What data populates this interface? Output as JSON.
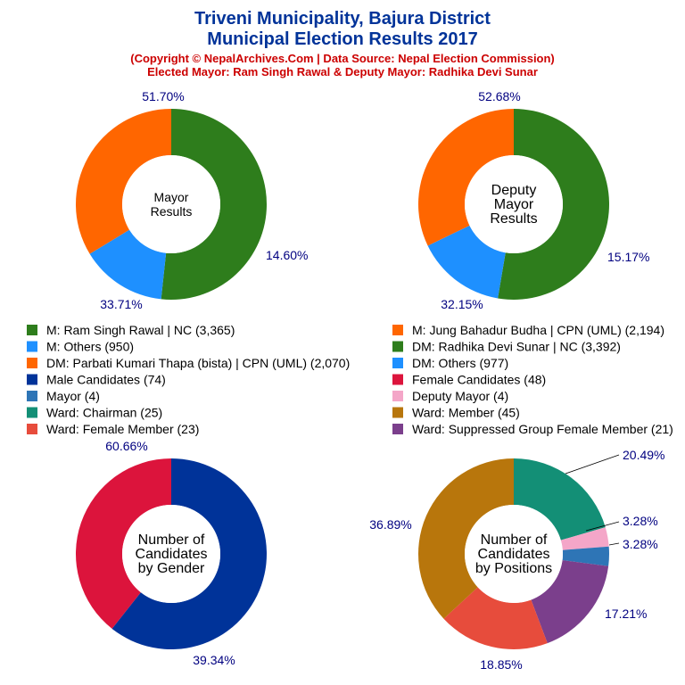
{
  "header": {
    "title1": "Triveni Municipality, Bajura District",
    "title2": "Municipal Election Results 2017",
    "subtitle1": "(Copyright © NepalArchives.Com | Data Source: Nepal Election Commission)",
    "subtitle2": "Elected Mayor: Ram Singh Rawal & Deputy Mayor: Radhika Devi Sunar"
  },
  "chart_data": [
    {
      "type": "pie",
      "center_label": [
        "Mayor",
        "Results"
      ],
      "series": [
        {
          "name": "M: Ram Singh Rawal | NC (3,365)",
          "value": 51.7,
          "label": "51.70%",
          "color": "#2e7d1c"
        },
        {
          "name": "M: Others (950)",
          "value": 14.6,
          "label": "14.60%",
          "color": "#1e90ff"
        },
        {
          "name": "M: Jung Bahadur Budha | CPN (UML) (2,194)",
          "value": 33.71,
          "label": "33.71%",
          "color": "#ff6600"
        }
      ]
    },
    {
      "type": "pie",
      "center_label": [
        "Deputy",
        "Mayor",
        "Results"
      ],
      "series": [
        {
          "name": "DM: Radhika Devi Sunar | NC (3,392)",
          "value": 52.68,
          "label": "52.68%",
          "color": "#2e7d1c"
        },
        {
          "name": "DM: Others (977)",
          "value": 15.17,
          "label": "15.17%",
          "color": "#1e90ff"
        },
        {
          "name": "DM: Parbati Kumari Thapa (bista) | CPN (UML) (2,070)",
          "value": 32.15,
          "label": "32.15%",
          "color": "#ff6600"
        }
      ]
    },
    {
      "type": "pie",
      "center_label": [
        "Number of",
        "Candidates",
        "by Gender"
      ],
      "series": [
        {
          "name": "Male Candidates (74)",
          "value": 60.66,
          "label": "60.66%",
          "color": "#003399"
        },
        {
          "name": "Female Candidates (48)",
          "value": 39.34,
          "label": "39.34%",
          "color": "#dc143c"
        }
      ]
    },
    {
      "type": "pie",
      "center_label": [
        "Number of",
        "Candidates",
        "by Positions"
      ],
      "series": [
        {
          "name": "Ward: Chairman (25)",
          "value": 20.49,
          "label": "20.49%",
          "color": "#138f76"
        },
        {
          "name": "Deputy Mayor (4)",
          "value": 3.28,
          "label": "3.28%",
          "color": "#f4a6c8"
        },
        {
          "name": "Mayor (4)",
          "value": 3.28,
          "label": "3.28%",
          "color": "#2e75b6"
        },
        {
          "name": "Ward: Suppressed Group Female Member (21)",
          "value": 17.21,
          "label": "17.21%",
          "color": "#7b3f8c"
        },
        {
          "name": "Ward: Female Member (23)",
          "value": 18.85,
          "label": "18.85%",
          "color": "#e74c3c"
        },
        {
          "name": "Ward: Member (45)",
          "value": 36.89,
          "label": "36.89%",
          "color": "#b8760c"
        }
      ]
    }
  ],
  "legend": [
    {
      "label": "M: Ram Singh Rawal | NC (3,365)",
      "color": "#2e7d1c"
    },
    {
      "label": "M: Jung Bahadur Budha | CPN (UML) (2,194)",
      "color": "#ff6600"
    },
    {
      "label": "M: Others (950)",
      "color": "#1e90ff"
    },
    {
      "label": "DM: Radhika Devi Sunar | NC (3,392)",
      "color": "#2e7d1c"
    },
    {
      "label": "DM: Parbati Kumari Thapa (bista) | CPN (UML) (2,070)",
      "color": "#ff6600"
    },
    {
      "label": "DM: Others (977)",
      "color": "#1e90ff"
    },
    {
      "label": "Male Candidates (74)",
      "color": "#003399"
    },
    {
      "label": "Female Candidates (48)",
      "color": "#dc143c"
    },
    {
      "label": "Mayor (4)",
      "color": "#2e75b6"
    },
    {
      "label": "Deputy Mayor (4)",
      "color": "#f4a6c8"
    },
    {
      "label": "Ward: Chairman (25)",
      "color": "#138f76"
    },
    {
      "label": "Ward: Member (45)",
      "color": "#b8760c"
    },
    {
      "label": "Ward: Female Member (23)",
      "color": "#e74c3c"
    },
    {
      "label": "Ward: Suppressed Group Female Member (21)",
      "color": "#7b3f8c"
    }
  ]
}
